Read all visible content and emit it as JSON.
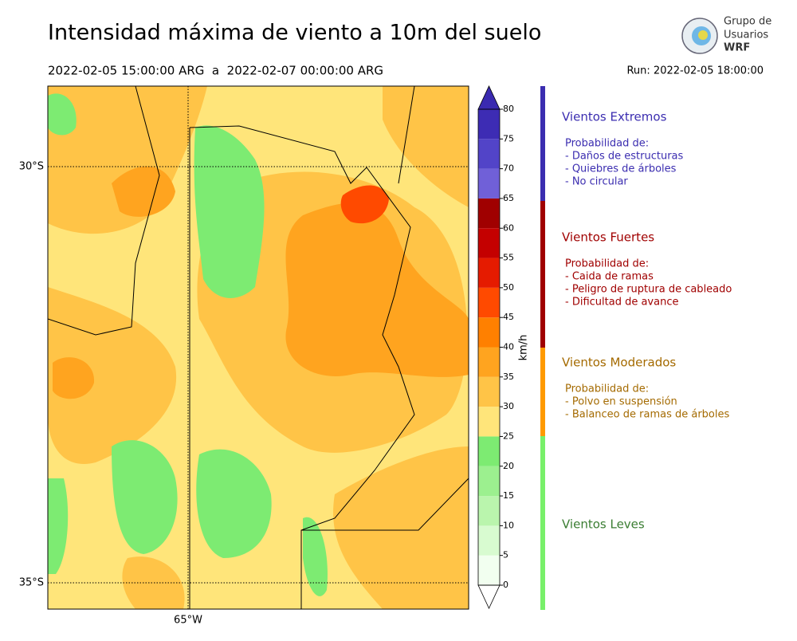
{
  "header": {
    "title": "Intensidad máxima de viento a 10m del suelo",
    "period": "2022-02-05 15:00:00 ARG  a  2022-02-07 00:00:00 ARG",
    "run": "Run: 2022-02-05 18:00:00"
  },
  "logo": {
    "lines": [
      "Grupo de",
      "Usuarios",
      "WRF"
    ]
  },
  "map": {
    "lat_labels": [
      "30°S",
      "35°S"
    ],
    "lon_labels": [
      "65°W"
    ]
  },
  "colorbar": {
    "label": "km/h",
    "levels": [
      0,
      5,
      10,
      15,
      20,
      25,
      30,
      35,
      40,
      45,
      50,
      55,
      60,
      65,
      70,
      75,
      80
    ],
    "colors": [
      "#f2fff0",
      "#d8fbd0",
      "#baf5ad",
      "#9cf08f",
      "#7deb72",
      "#ffe57a",
      "#ffc447",
      "#ffa41f",
      "#ff8000",
      "#ff4a00",
      "#e51b00",
      "#c40000",
      "#a00000",
      "#7060d8",
      "#5244c8",
      "#3d2cb4"
    ],
    "extend_low": "#ffffff",
    "extend_high": "#3a2ab0"
  },
  "legend": [
    {
      "title": "Vientos Extremos",
      "color": "#3b2db0",
      "lines": [
        "Probabilidad de:",
        "- Daños de estructuras",
        "- Quiebres de árboles",
        "- No circular"
      ]
    },
    {
      "title": "Vientos Fuertes",
      "color": "#a00000",
      "lines": [
        "Probabilidad de:",
        "- Caida de ramas",
        "- Peligro de ruptura de cableado",
        "- Dificultad de avance"
      ]
    },
    {
      "title": "Vientos Moderados",
      "color": "#a46a00",
      "lines": [
        "Probabilidad de:",
        "- Polvo en suspensión",
        "- Balanceo de ramas de árboles"
      ]
    },
    {
      "title": "Vientos Leves",
      "color": "#3a7d32",
      "lines": []
    }
  ]
}
